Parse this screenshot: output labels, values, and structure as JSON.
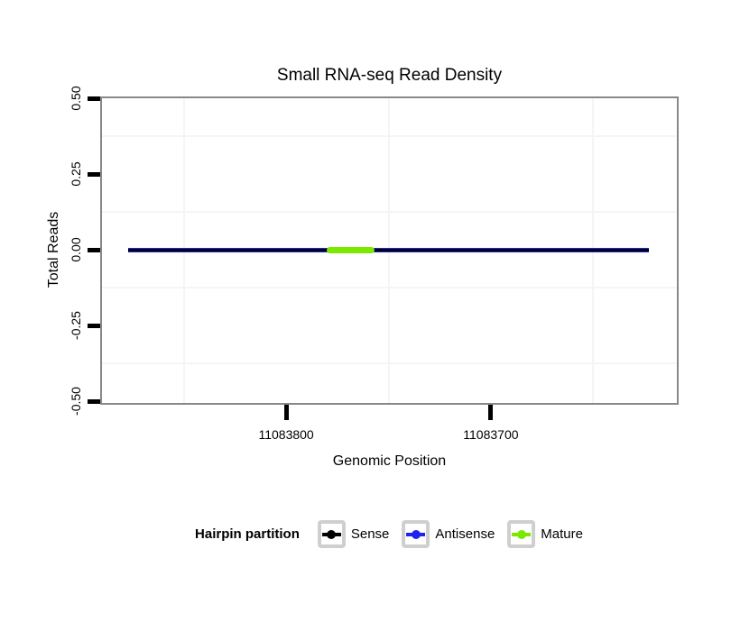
{
  "figure": {
    "title": "Small RNA-seq Read Density"
  },
  "chart_data": {
    "type": "line",
    "title": "Small RNA-seq Read Density",
    "xlabel": "Genomic Position",
    "ylabel": "Total Reads",
    "x_axis": {
      "reversed": true,
      "range_left": 11083890,
      "range_right": 11083610,
      "ticks": [
        11083800,
        11083700
      ],
      "tick_labels": [
        "11083800",
        "11083700"
      ],
      "minor_gridlines": [
        11083850,
        11083750,
        11083650
      ]
    },
    "y_axis": {
      "range": [
        -0.5,
        0.5
      ],
      "ticks": [
        0.5,
        0.25,
        0.0,
        -0.25,
        -0.5
      ],
      "tick_labels": [
        "0.50",
        "0.25",
        "0.00",
        "-0.25",
        "-0.50"
      ],
      "minor_gridlines": [
        0.375,
        0.125,
        -0.125,
        -0.375
      ]
    },
    "series": [
      {
        "name": "Antisense",
        "color": "#2222EE",
        "y": 0,
        "x_start": 11083877,
        "x_end": 11083623,
        "thickness": 5,
        "rounded": false
      },
      {
        "name": "Sense",
        "color": "#000000",
        "y": 0,
        "x_start": 11083877,
        "x_end": 11083623,
        "thickness": 3,
        "rounded": false
      },
      {
        "name": "Mature",
        "color": "#7BE800",
        "y": 0,
        "x_start": 11083780,
        "x_end": 11083757,
        "thickness": 7,
        "rounded": true
      }
    ],
    "grid": "minor-only",
    "legend_position": "bottom"
  },
  "legend": {
    "title": "Hairpin partition",
    "items": [
      {
        "label": "Sense",
        "color": "#000000"
      },
      {
        "label": "Antisense",
        "color": "#2222EE"
      },
      {
        "label": "Mature",
        "color": "#7BE800"
      }
    ]
  },
  "colors": {
    "panel_border": "#888888",
    "grid_minor": "#f5f5f5",
    "tick": "#000000",
    "background": "#ffffff"
  }
}
